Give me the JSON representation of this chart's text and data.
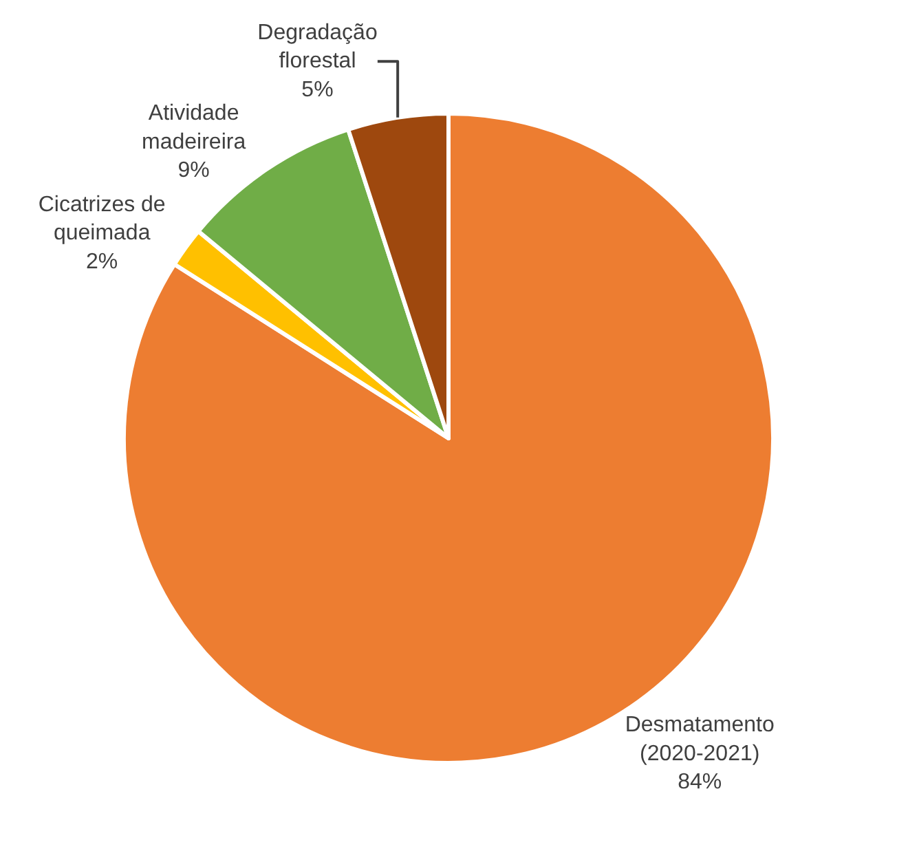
{
  "chart_data": {
    "type": "pie",
    "categories": [
      "Desmatamento (2020-2021)",
      "Cicatrizes de queimada",
      "Atividade madeireira",
      "Degradação florestal"
    ],
    "values": [
      84,
      2,
      9,
      5
    ],
    "value_labels": [
      "84%",
      "2%",
      "9%",
      "5%"
    ],
    "colors": [
      "#ed7d31",
      "#ffc000",
      "#70ad47",
      "#9e480e"
    ],
    "legend": false
  }
}
